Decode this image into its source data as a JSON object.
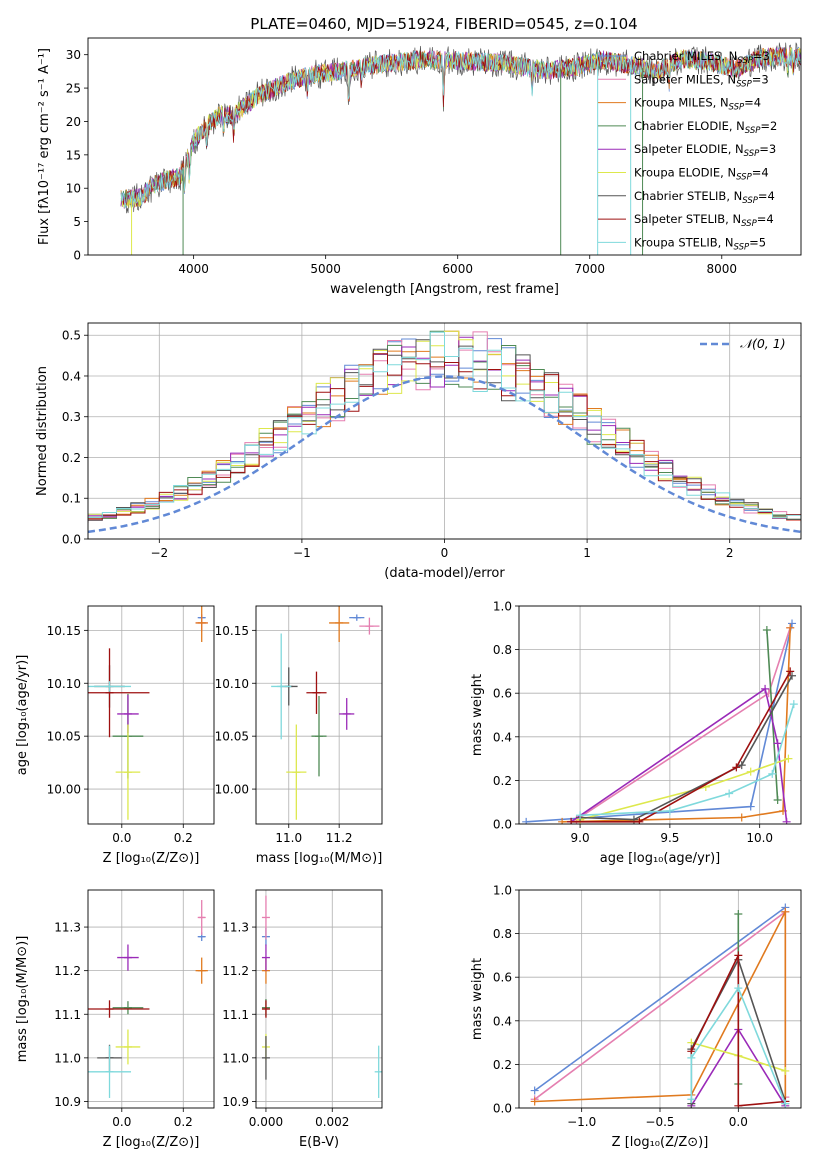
{
  "figure": {
    "title": "PLATE=0460, MJD=51924, FIBERID=0545, z=0.104"
  },
  "series": [
    {
      "name": "Chabrier MILES, N$_{SSP}$=3",
      "label": "Chabrier MILES, N",
      "sub": "SSP",
      "tail": "=3",
      "color": "#6189d6"
    },
    {
      "name": "Salpeter MILES, N$_{SSP}$=3",
      "label": "Salpeter MILES, N",
      "sub": "SSP",
      "tail": "=3",
      "color": "#e57fb0"
    },
    {
      "name": "Kroupa MILES, N$_{SSP}$=4",
      "label": "Kroupa MILES, N",
      "sub": "SSP",
      "tail": "=4",
      "color": "#e07a1f"
    },
    {
      "name": "Chabrier ELODIE, N$_{SSP}$=2",
      "label": "Chabrier ELODIE, N",
      "sub": "SSP",
      "tail": "=2",
      "color": "#4f8a55"
    },
    {
      "name": "Salpeter ELODIE, N$_{SSP}$=3",
      "label": "Salpeter ELODIE, N",
      "sub": "SSP",
      "tail": "=3",
      "color": "#9a2ab8"
    },
    {
      "name": "Kroupa ELODIE, N$_{SSP}$=4",
      "label": "Kroupa ELODIE, N",
      "sub": "SSP",
      "tail": "=4",
      "color": "#dde84c"
    },
    {
      "name": "Chabrier STELIB, N$_{SSP}$=4",
      "label": "Chabrier STELIB, N",
      "sub": "SSP",
      "tail": "=4",
      "color": "#555555"
    },
    {
      "name": "Salpeter STELIB, N$_{SSP}$=4",
      "label": "Salpeter STELIB, N",
      "sub": "SSP",
      "tail": "=4",
      "color": "#9e1010"
    },
    {
      "name": "Kroupa STELIB, N$_{SSP}$=5",
      "label": "Kroupa STELIB, N",
      "sub": "SSP",
      "tail": "=5",
      "color": "#7fd9dc"
    }
  ],
  "chart_data": [
    {
      "id": "spectrum",
      "type": "line",
      "title": "PLATE=0460, MJD=51924, FIBERID=0545, z=0.104",
      "xlabel": "wavelength [Angstrom, rest frame]",
      "ylabel": "Flux [fλ10⁻¹⁷ erg cm⁻² s⁻¹ A⁻¹]",
      "xlim": [
        3200,
        8600
      ],
      "ylim": [
        0,
        32.5
      ],
      "xticks": [
        4000,
        5000,
        6000,
        7000,
        8000
      ],
      "yticks": [
        0,
        5,
        10,
        15,
        20,
        25,
        30
      ],
      "continuum": [
        [
          3450,
          8.3
        ],
        [
          3600,
          8.6
        ],
        [
          3700,
          10.5
        ],
        [
          3800,
          11.3
        ],
        [
          3900,
          11.8
        ],
        [
          4000,
          17
        ],
        [
          4100,
          19.5
        ],
        [
          4200,
          21
        ],
        [
          4300,
          21
        ],
        [
          4400,
          22.5
        ],
        [
          4500,
          24
        ],
        [
          4700,
          25.8
        ],
        [
          4900,
          27
        ],
        [
          5100,
          27.5
        ],
        [
          5300,
          28.3
        ],
        [
          5500,
          28.8
        ],
        [
          5700,
          29.2
        ],
        [
          5900,
          29.2
        ],
        [
          6100,
          29
        ],
        [
          6300,
          28.8
        ],
        [
          6500,
          28.2
        ],
        [
          6700,
          27.6
        ],
        [
          6900,
          28.2
        ],
        [
          7100,
          29.2
        ],
        [
          7300,
          28.5
        ],
        [
          7500,
          27.5
        ],
        [
          7700,
          29.4
        ],
        [
          7900,
          29
        ],
        [
          8100,
          27.8
        ],
        [
          8300,
          29.6
        ],
        [
          8600,
          29.8
        ]
      ],
      "absorption_lines": [
        [
          3933,
          4
        ],
        [
          3968,
          3.5
        ],
        [
          4101,
          2.5
        ],
        [
          4227,
          2
        ],
        [
          4304,
          3.5
        ],
        [
          4861,
          2
        ],
        [
          5175,
          4.5
        ],
        [
          5270,
          2
        ],
        [
          5892,
          6.5
        ],
        [
          6563,
          3
        ],
        [
          7600,
          3
        ],
        [
          8500,
          2
        ],
        [
          8542,
          2.5
        ],
        [
          8662,
          2.5
        ]
      ],
      "edge_drops": [
        [
          3530,
          5
        ],
        [
          3920,
          3
        ],
        [
          6780,
          3
        ],
        [
          7060,
          8
        ],
        [
          7310,
          8
        ],
        [
          7400,
          3
        ]
      ],
      "legend_position": "upper right"
    },
    {
      "id": "residuals",
      "type": "histogram",
      "xlabel": "(data-model)/error",
      "ylabel": "Normed distribution",
      "xlim": [
        -2.5,
        2.5
      ],
      "ylim": [
        0,
        0.53
      ],
      "xticks": [
        -2,
        -1,
        0,
        1,
        2
      ],
      "yticks": [
        0,
        0.1,
        0.2,
        0.3,
        0.4,
        0.5
      ],
      "bin_width": 0.1,
      "reference": {
        "label": "𝒩(0, 1)",
        "mu": 0,
        "sigma": 1,
        "color": "#6189d6"
      },
      "legend_position": "upper right"
    },
    {
      "id": "age_vs_Z",
      "type": "errorbar",
      "xlabel": "Z [log₁₀(Z/Z⊙)]",
      "ylabel": "age  [log₁₀(age/yr)]",
      "xlim": [
        -0.11,
        0.3
      ],
      "ylim": [
        9.967,
        10.173
      ],
      "xticks": [
        0,
        0.2
      ],
      "yticks": [
        10.0,
        10.05,
        10.1,
        10.15
      ],
      "points": [
        {
          "s": 0,
          "x": 0.26,
          "y": 10.162,
          "xerr": 0.01,
          "yerr": 0.003
        },
        {
          "s": 1,
          "x": 0.26,
          "y": 10.157,
          "xerr": 0.02,
          "yerr": 0.008
        },
        {
          "s": 2,
          "x": 0.26,
          "y": 10.157,
          "xerr": 0.02,
          "yerr": 0.018
        },
        {
          "s": 3,
          "x": 0.02,
          "y": 10.05,
          "xerr": 0.05,
          "yerr": 0.04
        },
        {
          "s": 4,
          "x": 0.02,
          "y": 10.071,
          "xerr": 0.035,
          "yerr": 0.018
        },
        {
          "s": 5,
          "x": 0.02,
          "y": 10.016,
          "xerr": 0.04,
          "yerr": 0.045
        },
        {
          "s": 6,
          "x": -0.04,
          "y": 10.097,
          "xerr": 0.05,
          "yerr": 0.02
        },
        {
          "s": 7,
          "x": -0.04,
          "y": 10.091,
          "xerr": 0.13,
          "yerr": 0.042
        },
        {
          "s": 8,
          "x": -0.04,
          "y": 10.097,
          "xerr": 0.07,
          "yerr": 0.005
        }
      ]
    },
    {
      "id": "age_vs_mass",
      "type": "errorbar",
      "xlabel": "mass [log₁₀(M/M⊙)]",
      "ylabel": "",
      "xlim": [
        10.87,
        11.37
      ],
      "ylim": [
        9.967,
        10.173
      ],
      "xticks": [
        11.0,
        11.2
      ],
      "yticks": [
        10.0,
        10.05,
        10.1,
        10.15
      ],
      "points": [
        {
          "s": 0,
          "x": 11.27,
          "y": 10.162,
          "xerr": 0.03,
          "yerr": 0.003
        },
        {
          "s": 1,
          "x": 11.32,
          "y": 10.154,
          "xerr": 0.04,
          "yerr": 0.008
        },
        {
          "s": 2,
          "x": 11.2,
          "y": 10.157,
          "xerr": 0.04,
          "yerr": 0.018
        },
        {
          "s": 3,
          "x": 11.12,
          "y": 10.05,
          "xerr": 0.03,
          "yerr": 0.038
        },
        {
          "s": 4,
          "x": 11.23,
          "y": 10.071,
          "xerr": 0.03,
          "yerr": 0.015
        },
        {
          "s": 5,
          "x": 11.03,
          "y": 10.016,
          "xerr": 0.04,
          "yerr": 0.045
        },
        {
          "s": 6,
          "x": 11.0,
          "y": 10.097,
          "xerr": 0.035,
          "yerr": 0.018
        },
        {
          "s": 7,
          "x": 11.11,
          "y": 10.091,
          "xerr": 0.04,
          "yerr": 0.02
        },
        {
          "s": 8,
          "x": 10.97,
          "y": 10.097,
          "xerr": 0.04,
          "yerr": 0.05
        }
      ]
    },
    {
      "id": "massweight_vs_age",
      "type": "line",
      "xlabel": "age  [log₁₀(age/yr)]",
      "ylabel": "mass weight",
      "xlim": [
        8.66,
        10.23
      ],
      "ylim": [
        0,
        1
      ],
      "xticks": [
        9.0,
        9.5,
        10.0
      ],
      "yticks": [
        0.0,
        0.2,
        0.4,
        0.6,
        0.8,
        1.0
      ],
      "series": [
        {
          "s": 0,
          "x": [
            8.7,
            9.95,
            10.18
          ],
          "y": [
            0.01,
            0.08,
            0.92
          ]
        },
        {
          "s": 1,
          "x": [
            8.98,
            10.05,
            10.17
          ],
          "y": [
            0.02,
            0.6,
            0.9
          ]
        },
        {
          "s": 2,
          "x": [
            8.9,
            9.9,
            10.13,
            10.17
          ],
          "y": [
            0.01,
            0.03,
            0.06,
            0.9
          ]
        },
        {
          "s": 3,
          "x": [
            10.04,
            10.1
          ],
          "y": [
            0.89,
            0.11
          ]
        },
        {
          "s": 4,
          "x": [
            8.95,
            10.03,
            10.1,
            10.15
          ],
          "y": [
            0.01,
            0.62,
            0.37,
            0.01
          ]
        },
        {
          "s": 5,
          "x": [
            9.0,
            9.7,
            9.95,
            10.16
          ],
          "y": [
            0.02,
            0.17,
            0.24,
            0.3
          ]
        },
        {
          "s": 6,
          "x": [
            9.0,
            9.3,
            9.9,
            10.18
          ],
          "y": [
            0.03,
            0.02,
            0.27,
            0.68
          ]
        },
        {
          "s": 7,
          "x": [
            8.95,
            9.33,
            9.87,
            10.17
          ],
          "y": [
            0.01,
            0.01,
            0.26,
            0.7
          ]
        },
        {
          "s": 8,
          "x": [
            9.0,
            9.5,
            9.83,
            10.07,
            10.19
          ],
          "y": [
            0.04,
            0.06,
            0.14,
            0.23,
            0.55
          ]
        }
      ]
    },
    {
      "id": "mass_vs_Z",
      "type": "errorbar",
      "xlabel": "Z [log₁₀(Z/Z⊙)]",
      "ylabel": "mass [log₁₀(M/M⊙)]",
      "xlim": [
        -0.11,
        0.3
      ],
      "ylim": [
        10.885,
        11.385
      ],
      "xticks": [
        0,
        0.2
      ],
      "yticks": [
        10.9,
        11.0,
        11.1,
        11.2,
        11.3
      ],
      "points": [
        {
          "s": 0,
          "x": 0.26,
          "y": 11.278,
          "xerr": 0.01,
          "yerr": 0.01
        },
        {
          "s": 1,
          "x": 0.26,
          "y": 11.322,
          "xerr": 0.01,
          "yerr": 0.04
        },
        {
          "s": 2,
          "x": 0.26,
          "y": 11.2,
          "xerr": 0.02,
          "yerr": 0.03
        },
        {
          "s": 3,
          "x": 0.02,
          "y": 11.115,
          "xerr": 0.05,
          "yerr": 0.015
        },
        {
          "s": 4,
          "x": 0.02,
          "y": 11.23,
          "xerr": 0.035,
          "yerr": 0.03
        },
        {
          "s": 5,
          "x": 0.02,
          "y": 11.025,
          "xerr": 0.04,
          "yerr": 0.04
        },
        {
          "s": 6,
          "x": -0.04,
          "y": 11.0,
          "xerr": 0.04,
          "yerr": 0.03
        },
        {
          "s": 7,
          "x": -0.04,
          "y": 11.112,
          "xerr": 0.13,
          "yerr": 0.02
        },
        {
          "s": 8,
          "x": -0.04,
          "y": 10.968,
          "xerr": 0.07,
          "yerr": 0.06
        }
      ]
    },
    {
      "id": "mass_vs_ebv",
      "type": "errorbar",
      "xlabel": "E(B-V)",
      "ylabel": "",
      "xlim": [
        -0.0003,
        0.0035
      ],
      "ylim": [
        10.885,
        11.385
      ],
      "xticks": [
        0.0,
        0.002
      ],
      "yticks": [
        10.9,
        11.0,
        11.1,
        11.2,
        11.3
      ],
      "points": [
        {
          "s": 0,
          "x": 0.0,
          "y": 11.278,
          "xerr": 0,
          "yerr": 0.02
        },
        {
          "s": 1,
          "x": 0.0,
          "y": 11.322,
          "xerr": 0,
          "yerr": 0.05
        },
        {
          "s": 2,
          "x": 0.0,
          "y": 11.2,
          "xerr": 0,
          "yerr": 0.03
        },
        {
          "s": 3,
          "x": 0.0,
          "y": 11.115,
          "xerr": 0,
          "yerr": 0.02
        },
        {
          "s": 4,
          "x": 0.0,
          "y": 11.23,
          "xerr": 0,
          "yerr": 0.03
        },
        {
          "s": 5,
          "x": 0.0,
          "y": 11.025,
          "xerr": 0,
          "yerr": 0.03
        },
        {
          "s": 6,
          "x": 0.0,
          "y": 11.0,
          "xerr": 0,
          "yerr": 0.05
        },
        {
          "s": 7,
          "x": 0.0,
          "y": 11.112,
          "xerr": 0,
          "yerr": 0.02
        },
        {
          "s": 8,
          "x": 0.0034,
          "y": 10.968,
          "xerr": 0,
          "yerr": 0.06
        }
      ]
    },
    {
      "id": "massweight_vs_Z",
      "type": "line",
      "xlabel": "Z [log₁₀(Z/Z⊙)]",
      "ylabel": "mass weight",
      "xlim": [
        -1.4,
        0.4
      ],
      "ylim": [
        0,
        1
      ],
      "xticks": [
        -1.0,
        -0.5,
        0.0
      ],
      "yticks": [
        0.0,
        0.2,
        0.4,
        0.6,
        0.8,
        1.0
      ],
      "series": [
        {
          "s": 0,
          "x": [
            -1.3,
            0.3
          ],
          "y": [
            0.08,
            0.92
          ]
        },
        {
          "s": 1,
          "x": [
            -1.3,
            0.3,
            0.3
          ],
          "y": [
            0.04,
            0.9,
            0.05
          ]
        },
        {
          "s": 2,
          "x": [
            -1.3,
            -0.3,
            0.3,
            0.3
          ],
          "y": [
            0.03,
            0.06,
            0.9,
            0.02
          ]
        },
        {
          "s": 3,
          "x": [
            0.0,
            0.0
          ],
          "y": [
            0.89,
            0.11
          ]
        },
        {
          "s": 4,
          "x": [
            -0.3,
            0.0,
            0.3
          ],
          "y": [
            0.01,
            0.36,
            0.01
          ]
        },
        {
          "s": 5,
          "x": [
            -0.3,
            0.0,
            0.3
          ],
          "y": [
            0.3,
            0.24,
            0.17
          ]
        },
        {
          "s": 6,
          "x": [
            -0.3,
            -0.3,
            0.0,
            0.3
          ],
          "y": [
            0.02,
            0.27,
            0.68,
            0.03
          ]
        },
        {
          "s": 7,
          "x": [
            -0.3,
            0.0,
            0.0,
            0.3
          ],
          "y": [
            0.26,
            0.7,
            0.01,
            0.03
          ]
        },
        {
          "s": 8,
          "x": [
            -0.3,
            -0.3,
            0.0,
            0.3
          ],
          "y": [
            0.04,
            0.23,
            0.55,
            0.02
          ]
        }
      ]
    }
  ]
}
